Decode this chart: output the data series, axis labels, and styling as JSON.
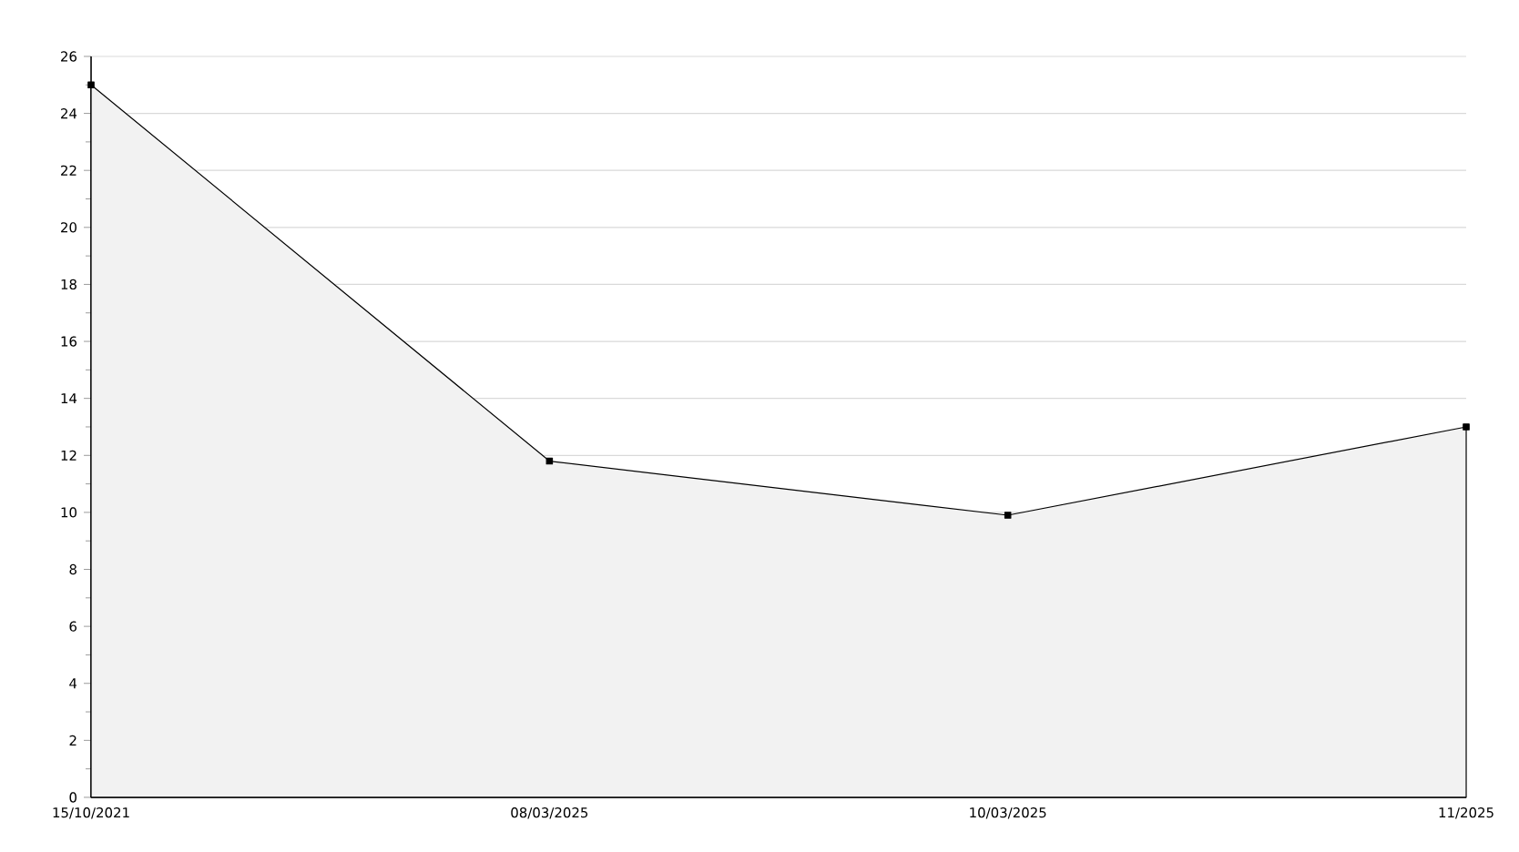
{
  "chart_data": {
    "type": "area",
    "categories": [
      "15/10/2021",
      "08/03/2025",
      "10/03/2025",
      "11/2025"
    ],
    "values": [
      25,
      11.8,
      9.9,
      13
    ],
    "color": "#000000",
    "ylim": [
      0,
      26
    ],
    "yticks": [
      0,
      2,
      4,
      6,
      8,
      10,
      12,
      14,
      16,
      18,
      20,
      22,
      24,
      26
    ],
    "grid": "y",
    "marker": "square",
    "line_style": "solid"
  }
}
